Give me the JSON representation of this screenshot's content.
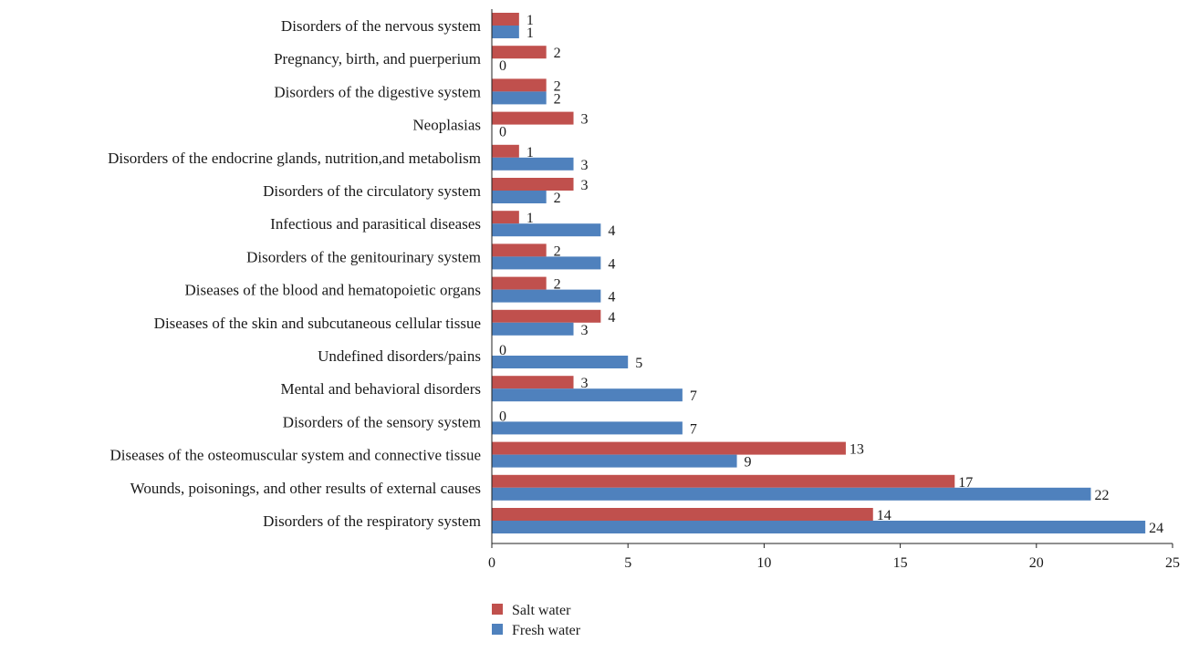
{
  "chart_data": {
    "type": "bar",
    "orientation": "horizontal",
    "categories": [
      "Disorders of the nervous system",
      "Pregnancy, birth, and puerperium",
      "Disorders of the digestive system",
      "Neoplasias",
      "Disorders of the endocrine glands, nutrition,and metabolism",
      "Disorders of the circulatory system",
      "Infectious and parasitical diseases",
      "Disorders of the genitourinary system",
      "Diseases of the blood and hematopoietic organs",
      "Diseases of the skin and subcutaneous cellular tissue",
      "Undefined disorders/pains",
      "Mental and behavioral disorders",
      "Disorders of the sensory system",
      "Diseases of the osteomuscular system and connective tissue",
      "Wounds, poisonings, and other results of external causes",
      "Disorders of the respiratory system"
    ],
    "series": [
      {
        "name": "Salt water",
        "color": "#c0504d",
        "values": [
          1,
          2,
          2,
          3,
          1,
          3,
          1,
          2,
          2,
          4,
          0,
          3,
          0,
          13,
          17,
          14
        ]
      },
      {
        "name": "Fresh water",
        "color": "#4f81bd",
        "values": [
          1,
          0,
          2,
          0,
          3,
          2,
          4,
          4,
          4,
          3,
          5,
          7,
          7,
          9,
          22,
          24
        ]
      }
    ],
    "xlim": [
      0,
      25
    ],
    "xticks": [
      0,
      5,
      10,
      15,
      20,
      25
    ],
    "title": "",
    "xlabel": "",
    "ylabel": "",
    "grid": false,
    "legend_position": "bottom-center"
  }
}
